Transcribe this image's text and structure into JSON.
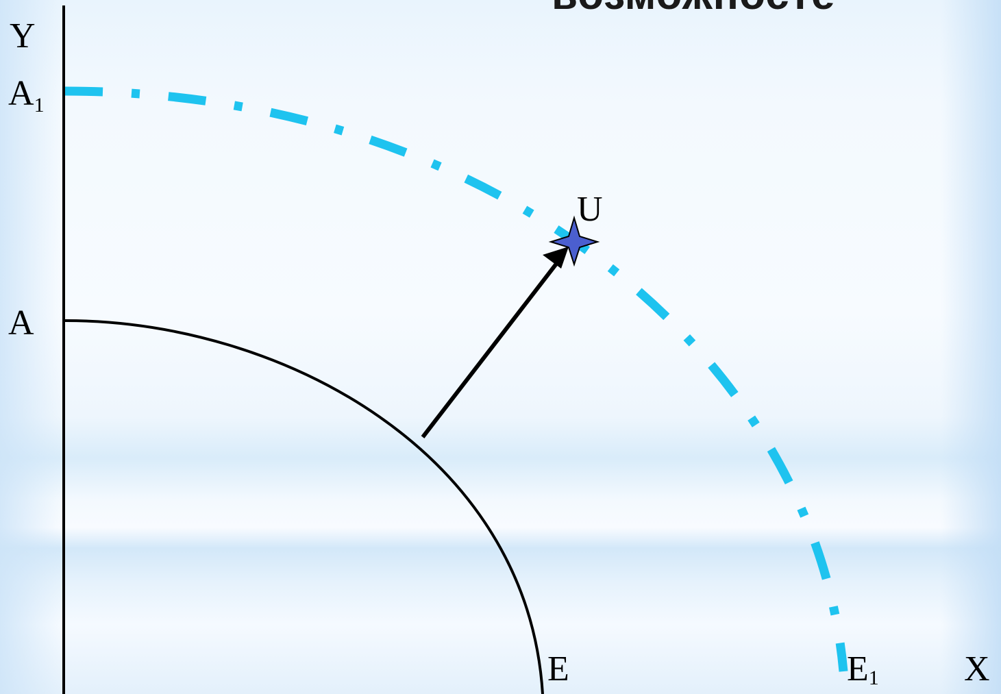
{
  "header": {
    "title": "возможносте"
  },
  "axes": {
    "y_label": "Y",
    "x_label": "X"
  },
  "points": {
    "a1": {
      "base": "A",
      "sub": "1"
    },
    "a": {
      "base": "A"
    },
    "e": {
      "base": "E"
    },
    "e1": {
      "base": "E",
      "sub": "1"
    },
    "u": {
      "base": "U"
    }
  },
  "colors": {
    "outer_curve": "#1ec3ef",
    "inner_curve": "#000000",
    "star_fill": "#4b5fcf",
    "arrow": "#000000"
  },
  "icons": {
    "point_marker": "four-point-star-icon",
    "shift_arrow": "arrow-icon"
  }
}
